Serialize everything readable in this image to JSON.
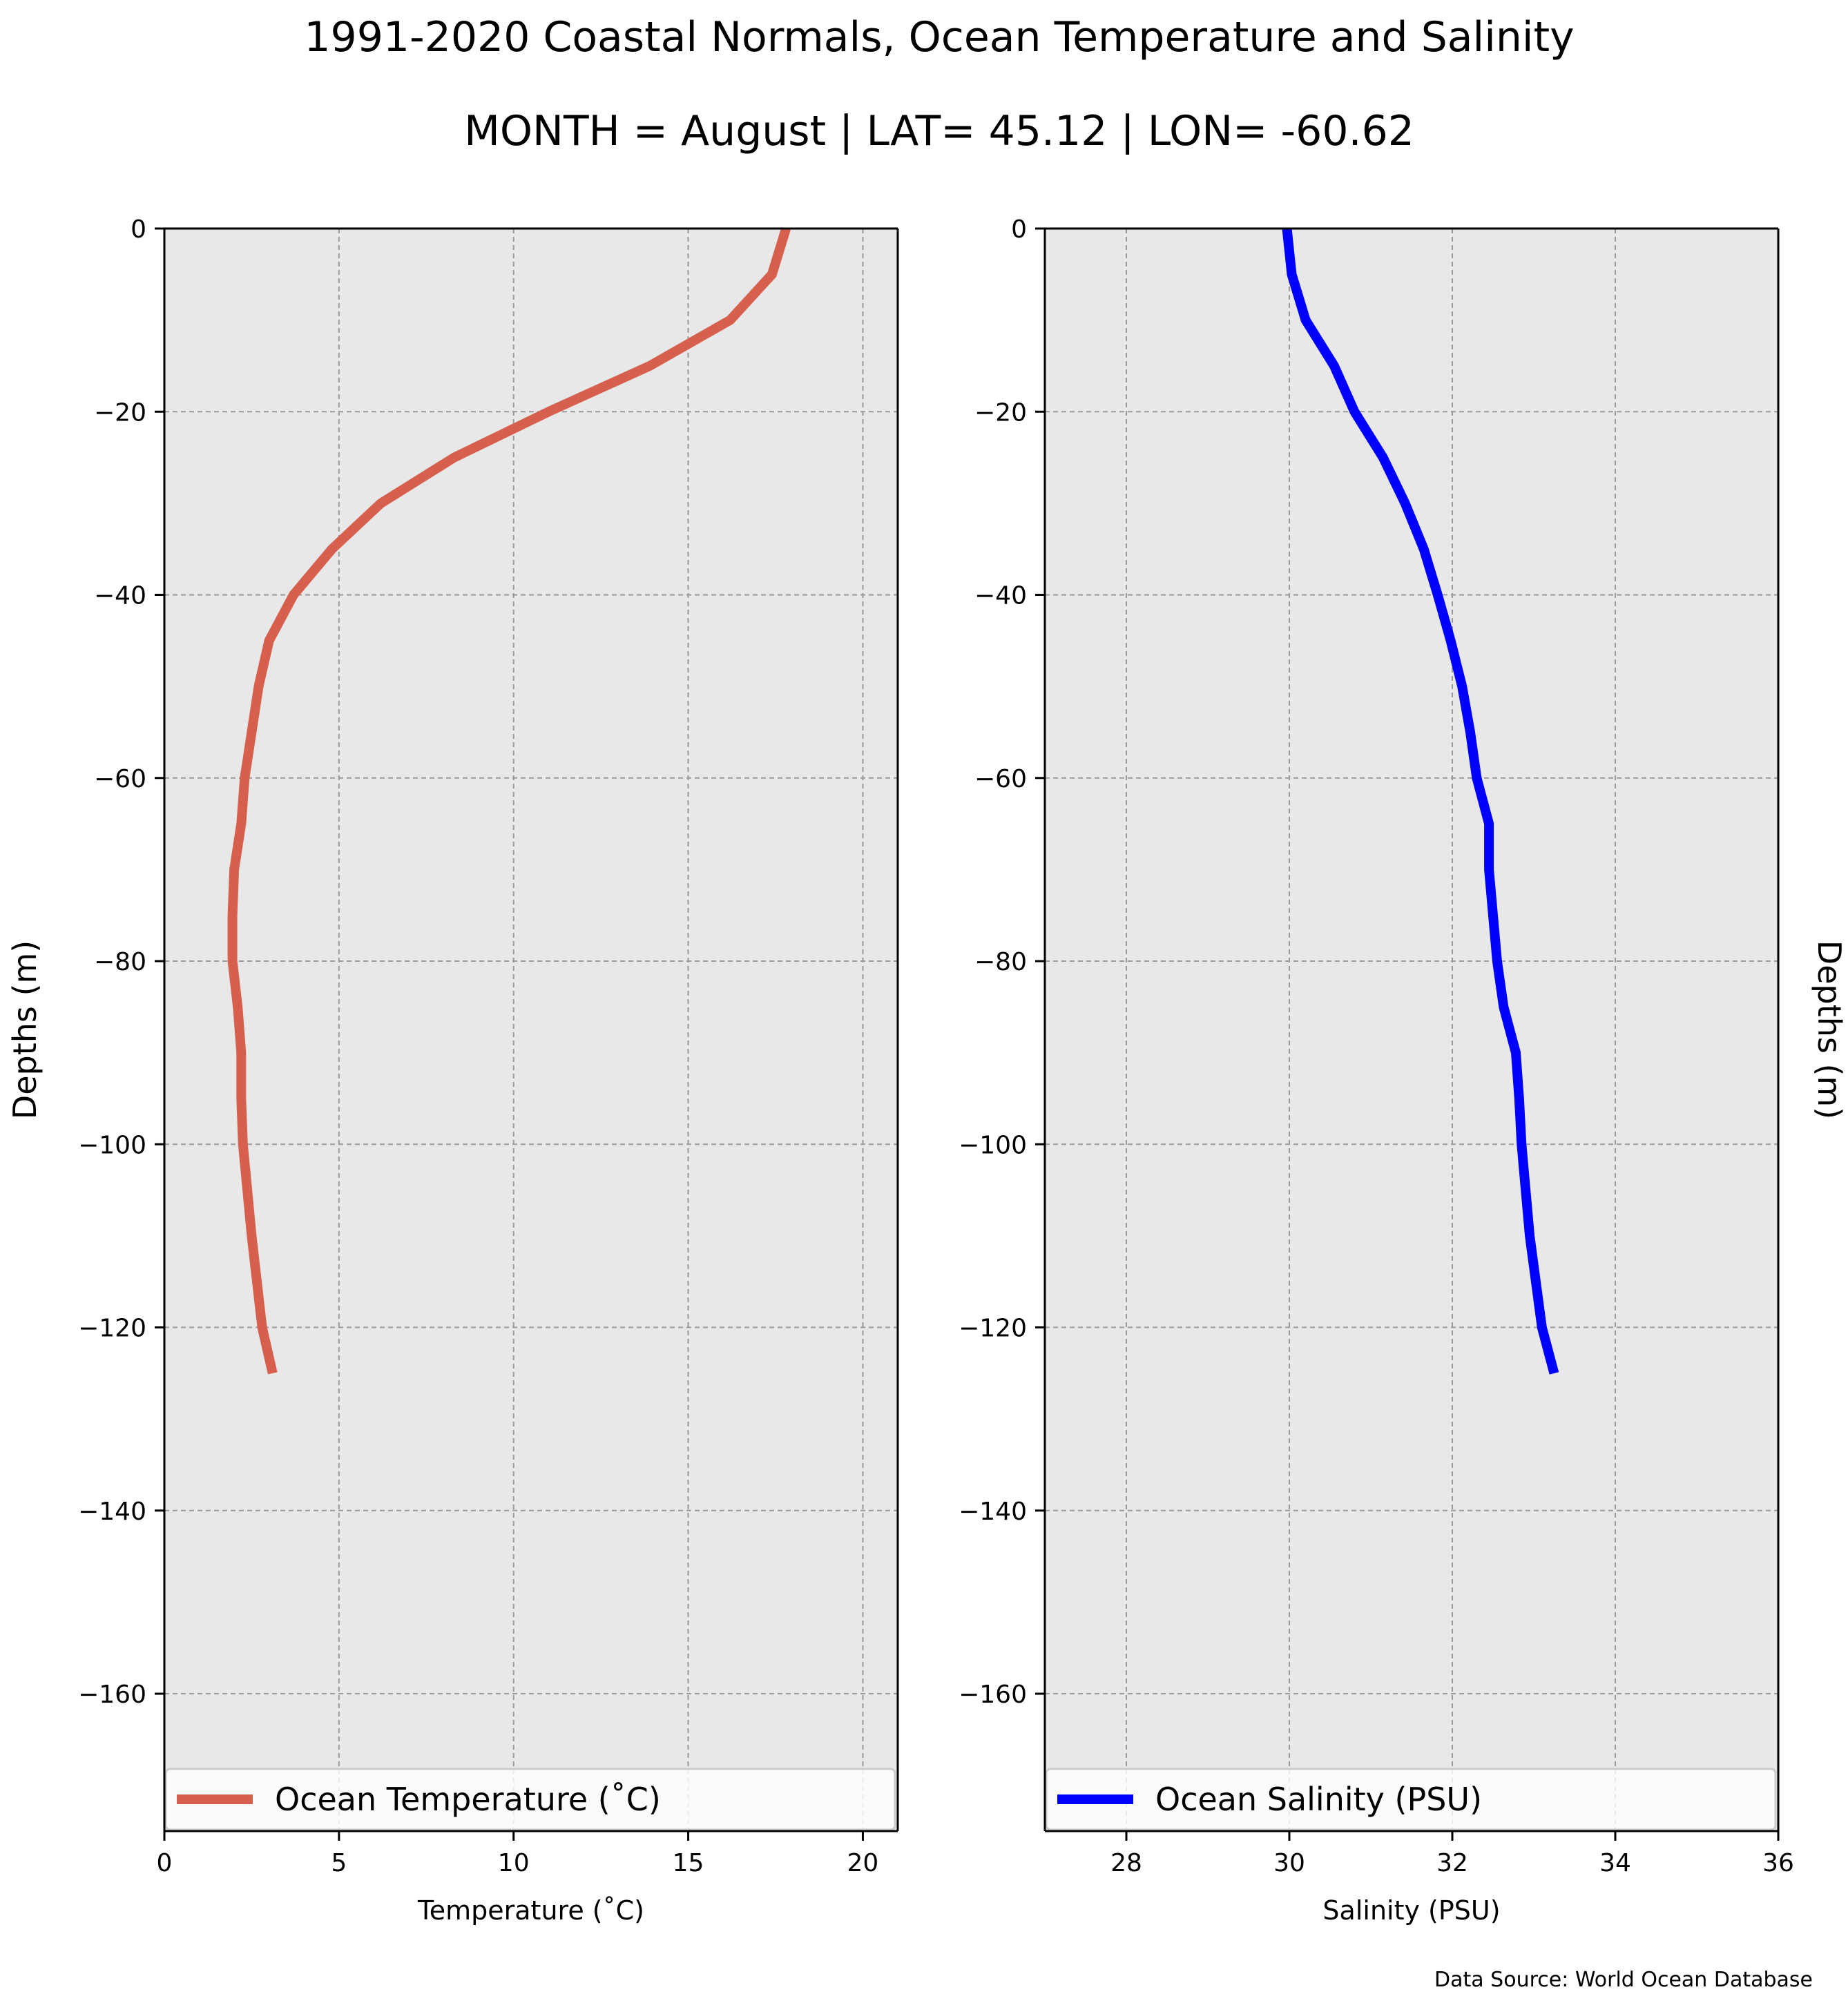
{
  "title_line1": "1991-2020 Coastal Normals, Ocean Temperature and Salinity",
  "title_line2": "MONTH = August | LAT= 45.12 | LON= -60.62",
  "data_source": "Data Source: World Ocean Database",
  "chart_data": [
    {
      "type": "line",
      "xlabel": "Temperature ($^\\circ$C)",
      "xlabel_display": "Temperature (˚C)",
      "ylabel": "Depths (m)",
      "ylabel_side": "left",
      "xlim": [
        0,
        21
      ],
      "ylim": [
        -175,
        0
      ],
      "xticks": [
        0,
        5,
        10,
        15,
        20
      ],
      "yticks": [
        0,
        -20,
        -40,
        -60,
        -80,
        -100,
        -120,
        -140,
        -160
      ],
      "grid": true,
      "legend_loc": "lower center",
      "series": [
        {
          "name": "Ocean Temperature (˚C)",
          "color": "#d6604d",
          "x": [
            17.8,
            17.4,
            16.2,
            13.9,
            11.0,
            8.3,
            6.2,
            4.8,
            3.7,
            3.0,
            2.7,
            2.5,
            2.3,
            2.2,
            2.0,
            1.95,
            1.95,
            2.1,
            2.2,
            2.2,
            2.25,
            2.5,
            2.8,
            3.1
          ],
          "y": [
            0,
            -5,
            -10,
            -15,
            -20,
            -25,
            -30,
            -35,
            -40,
            -45,
            -50,
            -55,
            -60,
            -65,
            -70,
            -75,
            -80,
            -85,
            -90,
            -95,
            -100,
            -110,
            -120,
            -125
          ]
        }
      ]
    },
    {
      "type": "line",
      "xlabel": "Salinity (PSU)",
      "ylabel": "Depths (m)",
      "ylabel_side": "right",
      "xlim": [
        27,
        36
      ],
      "ylim": [
        -175,
        0
      ],
      "xticks": [
        28,
        30,
        32,
        34,
        36
      ],
      "yticks": [
        0,
        -20,
        -40,
        -60,
        -80,
        -100,
        -120,
        -140,
        -160
      ],
      "grid": true,
      "legend_loc": "lower center",
      "series": [
        {
          "name": "Ocean Salinity (PSU)",
          "color": "#0000ff",
          "x": [
            29.97,
            30.03,
            30.2,
            30.55,
            30.8,
            31.15,
            31.42,
            31.65,
            31.82,
            31.98,
            32.12,
            32.22,
            32.3,
            32.45,
            32.45,
            32.5,
            32.55,
            32.63,
            32.78,
            32.82,
            32.85,
            32.95,
            33.1,
            33.25
          ],
          "y": [
            0,
            -5,
            -10,
            -15,
            -20,
            -25,
            -30,
            -35,
            -40,
            -45,
            -50,
            -55,
            -60,
            -65,
            -70,
            -75,
            -80,
            -85,
            -90,
            -95,
            -100,
            -110,
            -120,
            -125
          ]
        }
      ]
    }
  ]
}
